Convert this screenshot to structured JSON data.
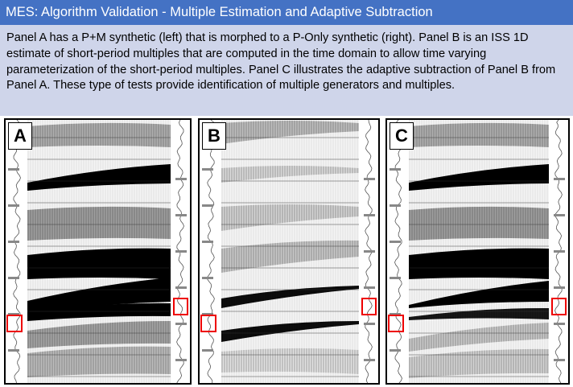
{
  "header": {
    "title": "MES: Algorithm Validation - Multiple Estimation and Adaptive Subtraction"
  },
  "body": {
    "paragraph": "Panel A has a P+M synthetic (left) that is morphed to a P-Only synthetic (right). Panel B is an ISS 1D estimate of short-period multiples that are computed in the time domain to allow time varying parameterization of the short-period multiples.  Panel C illustrates the adaptive subtraction of Panel B from Panel A.   These type of tests provide identification of multiple generators and multiples."
  },
  "panels": [
    {
      "label": "A"
    },
    {
      "label": "B"
    },
    {
      "label": "C"
    }
  ]
}
